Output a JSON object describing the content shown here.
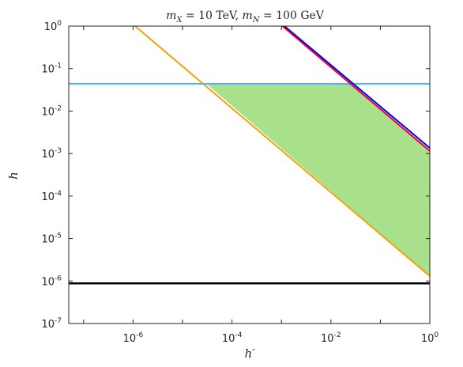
{
  "chart_data": {
    "type": "line",
    "title": "m_X = 10 TeV, m_N = 100 GeV",
    "title_parts": {
      "m1": "m",
      "s1": "X",
      "eq1": " = 10 TeV, ",
      "m2": "m",
      "s2": "N",
      "eq2": " = 100 GeV"
    },
    "xlabel": "h′",
    "ylabel": "h",
    "xscale": "log",
    "yscale": "log",
    "xlim": [
      5e-08,
      1
    ],
    "ylim": [
      1e-07,
      1
    ],
    "x_ticks": [
      {
        "value": 1e-06,
        "base": "10",
        "exp": "-6"
      },
      {
        "value": 0.0001,
        "base": "10",
        "exp": "-4"
      },
      {
        "value": 0.01,
        "base": "10",
        "exp": "-2"
      },
      {
        "value": 1,
        "base": "10",
        "exp": "0"
      }
    ],
    "y_ticks": [
      {
        "value": 1e-07,
        "base": "10",
        "exp": "-7"
      },
      {
        "value": 1e-06,
        "base": "10",
        "exp": "-6"
      },
      {
        "value": 1e-05,
        "base": "10",
        "exp": "-5"
      },
      {
        "value": 0.0001,
        "base": "10",
        "exp": "-4"
      },
      {
        "value": 0.001,
        "base": "10",
        "exp": "-3"
      },
      {
        "value": 0.01,
        "base": "10",
        "exp": "-2"
      },
      {
        "value": 0.1,
        "base": "10",
        "exp": "-1"
      },
      {
        "value": 1,
        "base": "10",
        "exp": "0"
      }
    ],
    "grid": false,
    "series": [
      {
        "color": "#f0a30a",
        "width": 2,
        "x": [
          1.1e-06,
          1
        ],
        "y": [
          1,
          1.3e-06
        ]
      },
      {
        "color": "#4db9e8",
        "width": 2,
        "x": [
          5e-08,
          1
        ],
        "y": [
          0.044,
          0.044
        ]
      },
      {
        "color": "#0000e6",
        "width": 2,
        "x": [
          0.00115,
          1
        ],
        "y": [
          1,
          0.00135
        ]
      },
      {
        "color": "#e6002b",
        "width": 2,
        "x": [
          0.00105,
          1
        ],
        "y": [
          1,
          0.00115
        ]
      },
      {
        "color": "#000000",
        "width": 2.5,
        "x": [
          5e-08,
          1
        ],
        "y": [
          8.8e-07,
          8.8e-07
        ]
      }
    ],
    "fill_region": {
      "color": "#a8e08c",
      "x": [
        3.05e-05,
        0.0245,
        1,
        1
      ],
      "y": [
        0.044,
        0.044,
        0.0011,
        1.3e-06
      ]
    }
  }
}
